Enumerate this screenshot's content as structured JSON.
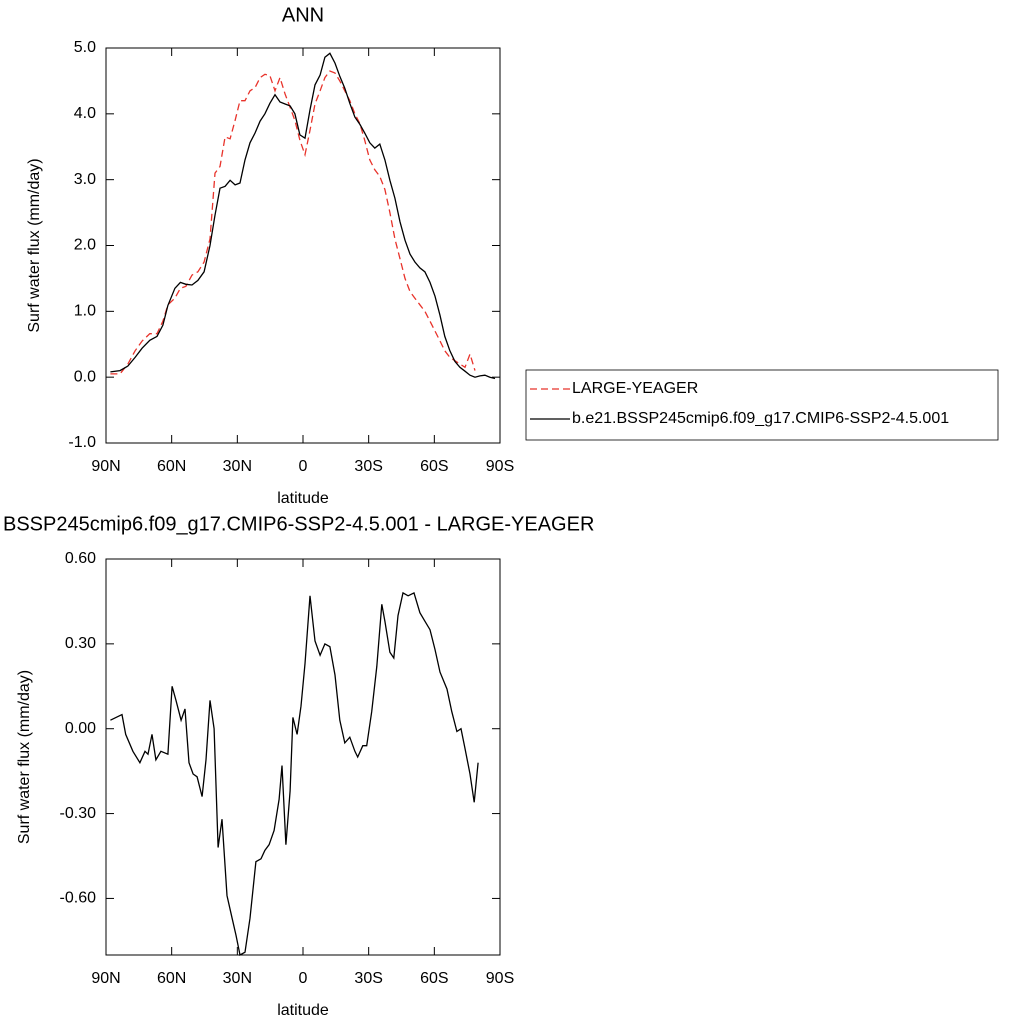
{
  "chart_data": [
    {
      "type": "line",
      "title": "ANN",
      "xlabel": "latitude",
      "ylabel": "Surf water flux (mm/day)",
      "x": [
        88,
        83.6,
        80,
        76.7,
        73.5,
        70,
        66.7,
        64,
        61.7,
        58.5,
        56,
        53.5,
        50.7,
        48,
        45.2,
        42.5,
        40.2,
        37.9,
        35.6,
        33.3,
        31,
        28.8,
        26.5,
        24.2,
        21.9,
        19.6,
        17.4,
        15.1,
        12.8,
        10.5,
        8.2,
        5.9,
        3.7,
        1.4,
        -0.9,
        -3.2,
        -5.5,
        -7.8,
        -10,
        -12.3,
        -14.6,
        -16.8,
        -19.1,
        -21.4,
        -23.7,
        -26,
        -28.2,
        -30.5,
        -32.8,
        -35.1,
        -37.4,
        -39.7,
        -42,
        -44.3,
        -46.6,
        -48.9,
        -51.1,
        -53.4,
        -55.7,
        -58,
        -60.3,
        -62.6,
        -64.8,
        -67.1,
        -69.4,
        -71.7,
        -74,
        -76.3,
        -78.6,
        -80.8,
        -83.1,
        -85.4,
        -87.7
      ],
      "series": [
        {
          "name": "LARGE-YEAGER",
          "color": "#e8332b",
          "dashed": true,
          "values": [
            0.05,
            0.05,
            0.2,
            0.4,
            0.55,
            0.66,
            0.66,
            0.85,
            1.1,
            1.2,
            1.35,
            1.38,
            1.55,
            1.6,
            1.75,
            2.1,
            3.1,
            3.2,
            3.65,
            3.62,
            3.9,
            4.2,
            4.2,
            4.35,
            4.4,
            4.55,
            4.6,
            4.58,
            4.35,
            4.55,
            4.3,
            4.1,
            3.9,
            3.6,
            3.38,
            3.75,
            4.15,
            4.35,
            4.55,
            4.65,
            4.62,
            4.5,
            4.35,
            4.2,
            4.0,
            3.85,
            3.6,
            3.3,
            3.15,
            3.05,
            2.85,
            2.5,
            2.1,
            1.8,
            1.5,
            1.3,
            1.2,
            1.1,
            1.0,
            0.85,
            0.7,
            0.55,
            0.4,
            0.3,
            0.25,
            0.2,
            0.15,
            0.35,
            0.1,
            null,
            null,
            null,
            null
          ]
        },
        {
          "name": "b.e21.BSSP245cmip6.f09_g17.CMIP6-SSP2-4.5.001",
          "color": "#000000",
          "dashed": false,
          "values": [
            0.08,
            0.1,
            0.17,
            0.3,
            0.44,
            0.56,
            0.62,
            0.79,
            1.09,
            1.35,
            1.44,
            1.41,
            1.4,
            1.47,
            1.6,
            2.0,
            2.46,
            2.87,
            2.9,
            2.99,
            2.92,
            2.95,
            3.3,
            3.56,
            3.71,
            3.89,
            4.0,
            4.16,
            4.29,
            4.18,
            4.15,
            4.12,
            4.0,
            3.68,
            3.63,
            4.06,
            4.44,
            4.59,
            4.86,
            4.92,
            4.77,
            4.57,
            4.39,
            4.16,
            3.95,
            3.84,
            3.71,
            3.56,
            3.48,
            3.54,
            3.3,
            2.99,
            2.72,
            2.36,
            2.08,
            1.87,
            1.75,
            1.66,
            1.6,
            1.44,
            1.23,
            0.94,
            0.62,
            0.4,
            0.24,
            0.15,
            0.09,
            0.03,
            0,
            0.02,
            0.03,
            0,
            -0.02
          ]
        }
      ],
      "xlim": [
        90,
        -90
      ],
      "xticks": [
        {
          "value": 90,
          "label": "90N"
        },
        {
          "value": 60,
          "label": "60N"
        },
        {
          "value": 30,
          "label": "30N"
        },
        0,
        {
          "value": -30,
          "label": "30S"
        },
        {
          "value": -60,
          "label": "60S"
        },
        {
          "value": -90,
          "label": "90S"
        }
      ],
      "ylim": [
        -1,
        5
      ],
      "yticks": [
        {
          "value": -1,
          "label": "-1.0"
        },
        {
          "value": 0,
          "label": "0.0"
        },
        {
          "value": 1,
          "label": "1.0"
        },
        {
          "value": 2,
          "label": "2.0"
        },
        {
          "value": 3,
          "label": "3.0"
        },
        {
          "value": 4,
          "label": "4.0"
        },
        {
          "value": 5,
          "label": "5.0"
        }
      ],
      "legend": "outside right"
    },
    {
      "type": "line",
      "title": "BSSP245cmip6.f09_g17.CMIP6-SSP2-4.5.001 - LARGE-YEAGER",
      "xlabel": "latitude",
      "ylabel": "Surf water flux (mm/day)",
      "x": [
        88,
        82.7,
        81,
        77.7,
        74.5,
        72.2,
        70.8,
        69,
        67.2,
        64.9,
        61.7,
        59.8,
        58,
        55.7,
        53.9,
        52.1,
        50.2,
        48.4,
        46.1,
        44.3,
        42.5,
        40.6,
        38.8,
        37,
        34.7,
        32.4,
        30.6,
        28.8,
        26.5,
        24.2,
        21.5,
        19.2,
        17.4,
        15.5,
        13.2,
        10.9,
        9.6,
        7.8,
        5.9,
        4.6,
        2.7,
        0.9,
        -0.9,
        -3.2,
        -5.5,
        -7.8,
        -10,
        -12.3,
        -14.6,
        -16.8,
        -19.1,
        -21.4,
        -23.7,
        -25,
        -27.3,
        -29.1,
        -31.4,
        -33.7,
        -36,
        -37.4,
        -39.7,
        -41.5,
        -43.4,
        -45.7,
        -48,
        -50.7,
        -53.4,
        -55.7,
        -58,
        -60.3,
        -62.6,
        -65.8,
        -68,
        -70.3,
        -72.2,
        -74,
        -76.3,
        -78.2,
        -80
      ],
      "series": [
        {
          "name": "b.e21.BSSP245cmip6.f09_g17.CMIP6-SSP2-4.5.001 - LARGE-YEAGER",
          "color": "#000000",
          "dashed": false,
          "values": [
            0.03,
            0.05,
            -0.02,
            -0.08,
            -0.12,
            -0.08,
            -0.09,
            -0.02,
            -0.11,
            -0.08,
            -0.09,
            0.15,
            0.1,
            0.03,
            0.07,
            -0.12,
            -0.16,
            -0.17,
            -0.24,
            -0.11,
            0.1,
            0.0,
            -0.42,
            -0.32,
            -0.59,
            -0.67,
            -0.73,
            -0.8,
            -0.79,
            -0.67,
            -0.47,
            -0.46,
            -0.43,
            -0.41,
            -0.36,
            -0.25,
            -0.13,
            -0.41,
            -0.22,
            0.04,
            -0.02,
            0.08,
            0.23,
            0.47,
            0.31,
            0.26,
            0.3,
            0.29,
            0.19,
            0.03,
            -0.05,
            -0.03,
            -0.08,
            -0.1,
            -0.06,
            -0.06,
            0.06,
            0.22,
            0.44,
            0.38,
            0.27,
            0.25,
            0.4,
            0.48,
            0.47,
            0.48,
            0.41,
            0.38,
            0.35,
            0.28,
            0.2,
            0.14,
            0.06,
            -0.01,
            0.0,
            -0.07,
            -0.16,
            -0.26,
            -0.12
          ]
        }
      ],
      "xlim": [
        90,
        -90
      ],
      "xticks": [
        {
          "value": 90,
          "label": "90N"
        },
        {
          "value": 60,
          "label": "60N"
        },
        {
          "value": 30,
          "label": "30N"
        },
        0,
        {
          "value": -30,
          "label": "30S"
        },
        {
          "value": -60,
          "label": "60S"
        },
        {
          "value": -90,
          "label": "90S"
        }
      ],
      "ylim": [
        -0.8,
        0.6
      ],
      "yticks": [
        {
          "value": -0.6,
          "label": "-0.60"
        },
        {
          "value": -0.3,
          "label": "-0.30"
        },
        {
          "value": 0,
          "label": "0.00"
        },
        {
          "value": 0.3,
          "label": "0.30"
        },
        {
          "value": 0.6,
          "label": "0.60"
        }
      ]
    }
  ]
}
